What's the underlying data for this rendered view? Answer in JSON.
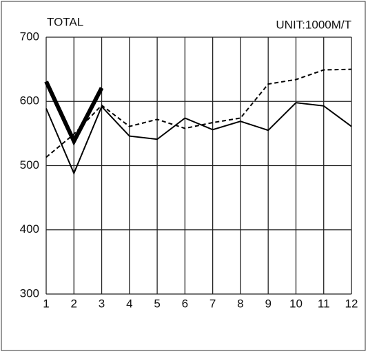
{
  "chart_data": {
    "type": "line",
    "title": "TOTAL",
    "subtitle": "UNIT:1000M/T",
    "x": [
      1,
      2,
      3,
      4,
      5,
      6,
      7,
      8,
      9,
      10,
      11,
      12
    ],
    "xlim": [
      1,
      12
    ],
    "xticks": [
      1,
      2,
      3,
      4,
      5,
      6,
      7,
      8,
      9,
      10,
      11,
      12
    ],
    "ylim": [
      300,
      700
    ],
    "yticks": [
      300,
      400,
      500,
      600,
      700
    ],
    "grid": true,
    "series": [
      {
        "color": "#000000",
        "width": 6,
        "dash": "solid",
        "values": [
          631,
          538,
          621,
          null,
          null,
          null,
          null,
          null,
          null,
          null,
          null,
          null
        ]
      },
      {
        "color": "#000000",
        "width": 2,
        "dash": "solid",
        "values": [
          589,
          488,
          592,
          546,
          541,
          574,
          556,
          569,
          555,
          598,
          593,
          561
        ]
      },
      {
        "color": "#000000",
        "width": 2,
        "dash": "dashed",
        "values": [
          513,
          549,
          594,
          561,
          572,
          558,
          567,
          574,
          627,
          634,
          649,
          650
        ]
      }
    ]
  }
}
